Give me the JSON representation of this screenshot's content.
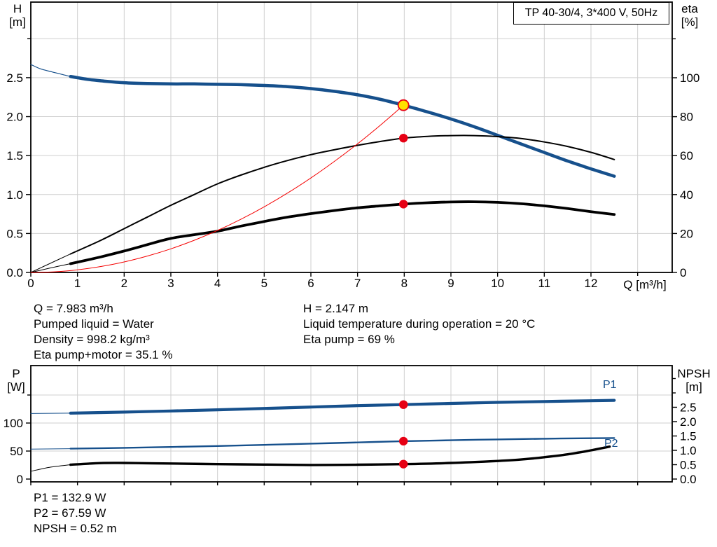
{
  "colors": {
    "blue": "#16508c",
    "black": "#000000",
    "red": "#e60014",
    "red_curve": "#f50000",
    "yellow": "#ffe000",
    "grid": "#cfcfcf",
    "frame": "#000000"
  },
  "annotations": {
    "left": [
      "Q = 7.983 m³/h",
      "Pumped liquid = Water",
      "Density = 998.2 kg/m³",
      "Eta pump+motor = 35.1 %"
    ],
    "right": [
      "H = 2.147 m",
      "Liquid temperature during operation = 20 °C",
      "Eta pump = 69 %"
    ],
    "bottom": [
      "P1 = 132.9 W",
      "P2 = 67.59 W",
      "NPSH = 0.52 m"
    ]
  },
  "chart_data": [
    {
      "type": "line",
      "title": "TP 40-30/4, 3*400 V, 50Hz",
      "xlabel": "Q [m³/h]",
      "ylabel_left": [
        "H",
        "[m]"
      ],
      "ylabel_right": [
        "eta",
        "[%]"
      ],
      "xlim": [
        0,
        13.74
      ],
      "ylim_left": [
        0,
        3.47
      ],
      "ylim_right": [
        0,
        138.85
      ],
      "grid": true,
      "x_grid": [
        1,
        2,
        3,
        4,
        5,
        6,
        7,
        8,
        9,
        10,
        11,
        12,
        13
      ],
      "yl_grid": [
        0.5,
        1,
        1.5,
        2,
        2.5,
        3
      ],
      "x_ticks": [
        {
          "v": 0,
          "label": "0"
        },
        {
          "v": 1,
          "label": "1"
        },
        {
          "v": 2,
          "label": "2"
        },
        {
          "v": 3,
          "label": "3"
        },
        {
          "v": 4,
          "label": "4"
        },
        {
          "v": 5,
          "label": "5"
        },
        {
          "v": 6,
          "label": "6"
        },
        {
          "v": 7,
          "label": "7"
        },
        {
          "v": 8,
          "label": "8"
        },
        {
          "v": 9,
          "label": "9"
        },
        {
          "v": 10,
          "label": "10"
        },
        {
          "v": 11,
          "label": "11"
        },
        {
          "v": 12,
          "label": "12"
        },
        {
          "v": 13,
          "label": ""
        }
      ],
      "yl_ticks": [
        {
          "v": 0,
          "label": "0.0"
        },
        {
          "v": 0.5,
          "label": "0.5"
        },
        {
          "v": 1,
          "label": "1.0"
        },
        {
          "v": 1.5,
          "label": "1.5"
        },
        {
          "v": 2,
          "label": "2.0"
        },
        {
          "v": 2.5,
          "label": "2.5"
        },
        {
          "v": 3,
          "label": ""
        }
      ],
      "yr_ticks": [
        {
          "v": 0,
          "label": "0"
        },
        {
          "v": 20,
          "label": "20"
        },
        {
          "v": 40,
          "label": "40"
        },
        {
          "v": 60,
          "label": "60"
        },
        {
          "v": 80,
          "label": "80"
        },
        {
          "v": 100,
          "label": "100"
        },
        {
          "v": 120,
          "label": ""
        }
      ],
      "series": [
        {
          "name": "pump-curve-extension",
          "axis": "left",
          "color": "blue",
          "width": 1.2,
          "points": [
            [
              0,
              2.67
            ],
            [
              0.2,
              2.615
            ],
            [
              0.45,
              2.575
            ],
            [
              0.65,
              2.545
            ],
            [
              0.85,
              2.515
            ]
          ]
        },
        {
          "name": "pump-curve",
          "axis": "left",
          "color": "blue",
          "width": 4.5,
          "points": [
            [
              0.85,
              2.515
            ],
            [
              1.2,
              2.48
            ],
            [
              1.5,
              2.46
            ],
            [
              2,
              2.435
            ],
            [
              2.5,
              2.425
            ],
            [
              3,
              2.42
            ],
            [
              3.5,
              2.42
            ],
            [
              4,
              2.415
            ],
            [
              4.5,
              2.41
            ],
            [
              5,
              2.4
            ],
            [
              5.5,
              2.385
            ],
            [
              6,
              2.36
            ],
            [
              6.5,
              2.325
            ],
            [
              7,
              2.28
            ],
            [
              7.5,
              2.22
            ],
            [
              7.983,
              2.147
            ],
            [
              8.5,
              2.06
            ],
            [
              9,
              1.97
            ],
            [
              9.5,
              1.87
            ],
            [
              10,
              1.76
            ],
            [
              10.5,
              1.65
            ],
            [
              11,
              1.54
            ],
            [
              11.5,
              1.43
            ],
            [
              12,
              1.33
            ],
            [
              12.5,
              1.235
            ]
          ]
        },
        {
          "name": "eta-pump-extension",
          "axis": "right",
          "color": "black",
          "width": 1,
          "points": [
            [
              0,
              0
            ],
            [
              0.4,
              4.5
            ],
            [
              0.85,
              9.5
            ]
          ]
        },
        {
          "name": "eta-pump-curve",
          "axis": "right",
          "color": "black",
          "width": 2,
          "points": [
            [
              0.85,
              9.5
            ],
            [
              1.5,
              16.5
            ],
            [
              2,
              22.5
            ],
            [
              2.5,
              28.5
            ],
            [
              3,
              34.5
            ],
            [
              3.5,
              40
            ],
            [
              4,
              45.5
            ],
            [
              4.5,
              50
            ],
            [
              5,
              54
            ],
            [
              5.5,
              57.5
            ],
            [
              6,
              60.5
            ],
            [
              6.5,
              63
            ],
            [
              7,
              65.3
            ],
            [
              7.5,
              67.3
            ],
            [
              7.983,
              69
            ],
            [
              8.5,
              69.9
            ],
            [
              9,
              70.3
            ],
            [
              9.5,
              70.3
            ],
            [
              10,
              69.8
            ],
            [
              10.5,
              68.8
            ],
            [
              11,
              67
            ],
            [
              11.5,
              64.7
            ],
            [
              12,
              61.7
            ],
            [
              12.5,
              58
            ]
          ]
        },
        {
          "name": "eta-pump-motor-extension",
          "axis": "right",
          "color": "black",
          "width": 1,
          "points": [
            [
              0,
              0
            ],
            [
              0.4,
              2.2
            ],
            [
              0.85,
              4.5
            ]
          ]
        },
        {
          "name": "eta-pump-motor-curve",
          "axis": "right",
          "color": "black",
          "width": 3.8,
          "points": [
            [
              0.85,
              4.5
            ],
            [
              1.5,
              8
            ],
            [
              2,
              11
            ],
            [
              2.5,
              14.3
            ],
            [
              3,
              17.5
            ],
            [
              3.5,
              19.4
            ],
            [
              4,
              21.2
            ],
            [
              4.5,
              23.8
            ],
            [
              5,
              26.2
            ],
            [
              5.5,
              28.4
            ],
            [
              6,
              30.2
            ],
            [
              6.5,
              31.8
            ],
            [
              7,
              33.2
            ],
            [
              7.5,
              34.2
            ],
            [
              7.983,
              35.1
            ],
            [
              8.5,
              35.8
            ],
            [
              9,
              36.2
            ],
            [
              9.5,
              36.3
            ],
            [
              10,
              36
            ],
            [
              10.5,
              35.3
            ],
            [
              11,
              34.2
            ],
            [
              11.5,
              32.8
            ],
            [
              12,
              31.2
            ],
            [
              12.5,
              29.8
            ]
          ]
        },
        {
          "name": "system-curve",
          "axis": "left",
          "color": "red_curve",
          "width": 1,
          "points": [
            [
              0,
              0
            ],
            [
              0.5,
              0.008
            ],
            [
              1,
              0.034
            ],
            [
              1.5,
              0.076
            ],
            [
              2,
              0.135
            ],
            [
              2.5,
              0.211
            ],
            [
              3,
              0.303
            ],
            [
              3.5,
              0.413
            ],
            [
              4,
              0.539
            ],
            [
              4.5,
              0.682
            ],
            [
              5,
              0.842
            ],
            [
              5.5,
              1.019
            ],
            [
              6,
              1.213
            ],
            [
              6.5,
              1.424
            ],
            [
              7,
              1.651
            ],
            [
              7.5,
              1.896
            ],
            [
              7.983,
              2.147
            ]
          ]
        }
      ],
      "markers": [
        {
          "name": "duty-point",
          "x": 7.983,
          "y": 2.147,
          "axis": "left",
          "r": 7.5,
          "fill": "yellow",
          "stroke": "red",
          "sw": 1.8
        },
        {
          "name": "eta-pump-point",
          "x": 7.983,
          "y": 69,
          "axis": "right",
          "r": 6.2,
          "fill": "red",
          "stroke": "red",
          "sw": 0
        },
        {
          "name": "eta-pump-motor-point",
          "x": 7.983,
          "y": 35.1,
          "axis": "right",
          "r": 6.2,
          "fill": "red",
          "stroke": "red",
          "sw": 0
        }
      ]
    },
    {
      "type": "line",
      "title": "",
      "xlabel": "",
      "ylabel_left": [
        "P",
        "[W]"
      ],
      "ylabel_right": [
        "NPSH",
        "[m]"
      ],
      "xlim": [
        0,
        13.74
      ],
      "ylim_left": [
        -5,
        202.5
      ],
      "ylim_right": [
        -0.098,
        3.951
      ],
      "grid": true,
      "x_grid": [
        1,
        2,
        3,
        4,
        5,
        6,
        7,
        8,
        9,
        10,
        11,
        12,
        13
      ],
      "yl_grid": [
        50,
        100,
        150
      ],
      "x_ticks": [
        {
          "v": 0,
          "label": ""
        },
        {
          "v": 1,
          "label": ""
        },
        {
          "v": 2,
          "label": ""
        },
        {
          "v": 3,
          "label": ""
        },
        {
          "v": 4,
          "label": ""
        },
        {
          "v": 5,
          "label": ""
        },
        {
          "v": 6,
          "label": ""
        },
        {
          "v": 7,
          "label": ""
        },
        {
          "v": 8,
          "label": ""
        },
        {
          "v": 9,
          "label": ""
        },
        {
          "v": 10,
          "label": ""
        },
        {
          "v": 11,
          "label": ""
        },
        {
          "v": 12,
          "label": ""
        },
        {
          "v": 13,
          "label": ""
        }
      ],
      "yl_ticks": [
        {
          "v": 0,
          "label": "0"
        },
        {
          "v": 50,
          "label": "50"
        },
        {
          "v": 100,
          "label": "100"
        },
        {
          "v": 150,
          "label": ""
        }
      ],
      "yr_ticks": [
        {
          "v": 0,
          "label": "0.0"
        },
        {
          "v": 0.5,
          "label": "0.5"
        },
        {
          "v": 1,
          "label": "1.0"
        },
        {
          "v": 1.5,
          "label": "1.5"
        },
        {
          "v": 2,
          "label": "2.0"
        },
        {
          "v": 2.5,
          "label": "2.5"
        },
        {
          "v": 3,
          "label": ""
        },
        {
          "v": 3.5,
          "label": ""
        }
      ],
      "series": [
        {
          "name": "p1-extension",
          "axis": "left",
          "color": "blue",
          "width": 1,
          "points": [
            [
              0,
              117
            ],
            [
              0.85,
              117.6
            ]
          ]
        },
        {
          "name": "p1-curve",
          "axis": "left",
          "color": "blue",
          "width": 4.2,
          "points": [
            [
              0.85,
              117.6
            ],
            [
              2,
              119.5
            ],
            [
              3,
              121.5
            ],
            [
              4,
              123.6
            ],
            [
              5,
              126
            ],
            [
              6,
              128.5
            ],
            [
              7,
              131
            ],
            [
              7.983,
              132.9
            ],
            [
              9,
              135
            ],
            [
              10,
              136.9
            ],
            [
              11,
              138.4
            ],
            [
              12,
              139.8
            ],
            [
              12.5,
              140.5
            ]
          ]
        },
        {
          "name": "p2-extension",
          "axis": "left",
          "color": "blue",
          "width": 1,
          "points": [
            [
              0,
              53.5
            ],
            [
              0.85,
              54.2
            ]
          ]
        },
        {
          "name": "p2-curve",
          "axis": "left",
          "color": "blue",
          "width": 2.4,
          "points": [
            [
              0.85,
              54.2
            ],
            [
              2,
              55.8
            ],
            [
              3,
              57.3
            ],
            [
              4,
              59
            ],
            [
              5,
              61
            ],
            [
              6,
              63.2
            ],
            [
              7,
              65.4
            ],
            [
              7.983,
              67.59
            ],
            [
              9,
              69.3
            ],
            [
              10,
              70.8
            ],
            [
              11,
              72
            ],
            [
              12,
              72.9
            ],
            [
              12.5,
              73.2
            ]
          ]
        },
        {
          "name": "npsh-extension",
          "axis": "right",
          "color": "black",
          "width": 1,
          "points": [
            [
              0,
              0.27
            ],
            [
              0.4,
              0.41
            ],
            [
              0.85,
              0.5
            ]
          ]
        },
        {
          "name": "npsh-curve",
          "axis": "right",
          "color": "black",
          "width": 3.4,
          "points": [
            [
              0.85,
              0.5
            ],
            [
              1.5,
              0.555
            ],
            [
              2,
              0.56
            ],
            [
              2.5,
              0.55
            ],
            [
              3,
              0.54
            ],
            [
              4,
              0.52
            ],
            [
              5,
              0.505
            ],
            [
              6,
              0.49
            ],
            [
              7,
              0.5
            ],
            [
              7.983,
              0.52
            ],
            [
              9,
              0.56
            ],
            [
              10,
              0.63
            ],
            [
              10.5,
              0.68
            ],
            [
              11,
              0.76
            ],
            [
              11.5,
              0.86
            ],
            [
              12,
              1.0
            ],
            [
              12.4,
              1.13
            ]
          ]
        }
      ],
      "series_labels": [
        {
          "text": "P1"
        },
        {
          "text": "P2"
        }
      ],
      "markers": [
        {
          "name": "p1-point",
          "x": 7.983,
          "y": 132.9,
          "axis": "left",
          "r": 6.2,
          "fill": "red",
          "stroke": "red",
          "sw": 0
        },
        {
          "name": "p2-point",
          "x": 7.983,
          "y": 67.59,
          "axis": "left",
          "r": 6.2,
          "fill": "red",
          "stroke": "red",
          "sw": 0
        },
        {
          "name": "npsh-point",
          "x": 7.983,
          "y": 0.52,
          "axis": "right",
          "r": 6.2,
          "fill": "red",
          "stroke": "red",
          "sw": 0
        }
      ]
    }
  ]
}
